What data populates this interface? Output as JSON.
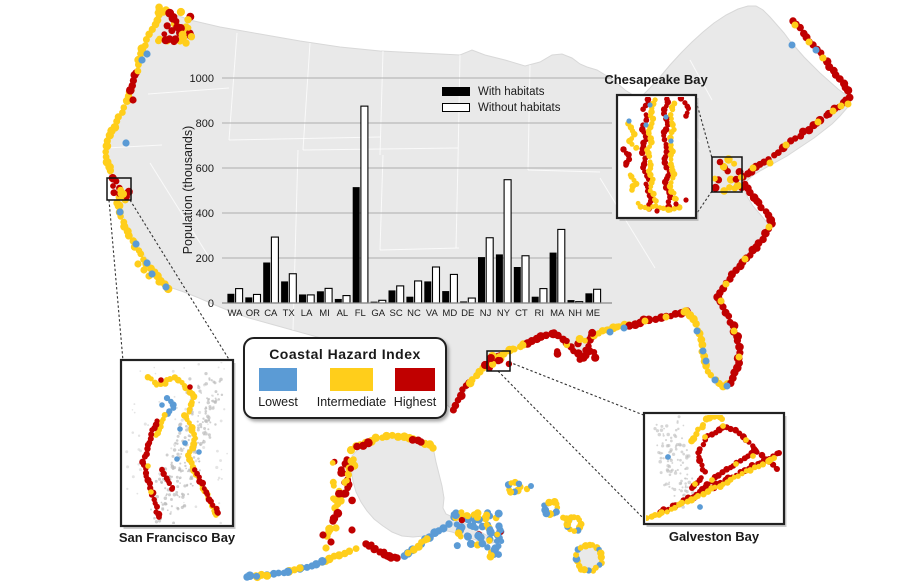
{
  "figure": {
    "insets": {
      "chesapeake": {
        "label": "Chesapeake Bay"
      },
      "san_francisco": {
        "label": "San Francisco Bay"
      },
      "galveston": {
        "label": "Galveston Bay"
      }
    },
    "hazard_legend": {
      "title": "Coastal Hazard Index",
      "classes": [
        {
          "label": "Lowest",
          "color": "#5B9BD5"
        },
        {
          "label": "Intermediate",
          "color": "#FFCE1B"
        },
        {
          "label": "Highest",
          "color": "#C00000"
        }
      ]
    }
  },
  "colors": {
    "lowest": "#5B9BD5",
    "intermediate": "#FFCE1B",
    "highest": "#C00000",
    "land": "#E9E9E9",
    "land_border": "#D8D8D8",
    "state_line": "#FFFFFF",
    "terrain_speckle": "#BBBBBB",
    "gridline": "#ADADAD"
  },
  "chart_data": {
    "type": "bar",
    "title": "",
    "categories": [
      "WA",
      "OR",
      "CA",
      "TX",
      "LA",
      "MI",
      "AL",
      "FL",
      "GA",
      "SC",
      "NC",
      "VA",
      "MD",
      "DE",
      "NJ",
      "NY",
      "CT",
      "RI",
      "MA",
      "NH",
      "ME"
    ],
    "series": [
      {
        "name": "With habitats",
        "values": [
          41,
          25,
          180,
          96,
          38,
          52,
          18,
          515,
          6,
          56,
          28,
          96,
          53,
          7,
          204,
          216,
          160,
          28,
          224,
          13,
          43
        ]
      },
      {
        "name": "Without habitats",
        "values": [
          64,
          38,
          293,
          130,
          36,
          65,
          33,
          875,
          12,
          76,
          98,
          160,
          127,
          22,
          290,
          548,
          210,
          64,
          327,
          6,
          61
        ]
      }
    ],
    "xlabel": "",
    "ylabel": "Population (thousands)",
    "ylim": [
      0,
      1000
    ],
    "yticks": [
      0,
      200,
      400,
      600,
      800,
      1000
    ],
    "grid": true,
    "legend_position": "top-right",
    "bar_colors": {
      "With habitats": "#000000",
      "Without habitats": "#FFFFFF"
    }
  }
}
